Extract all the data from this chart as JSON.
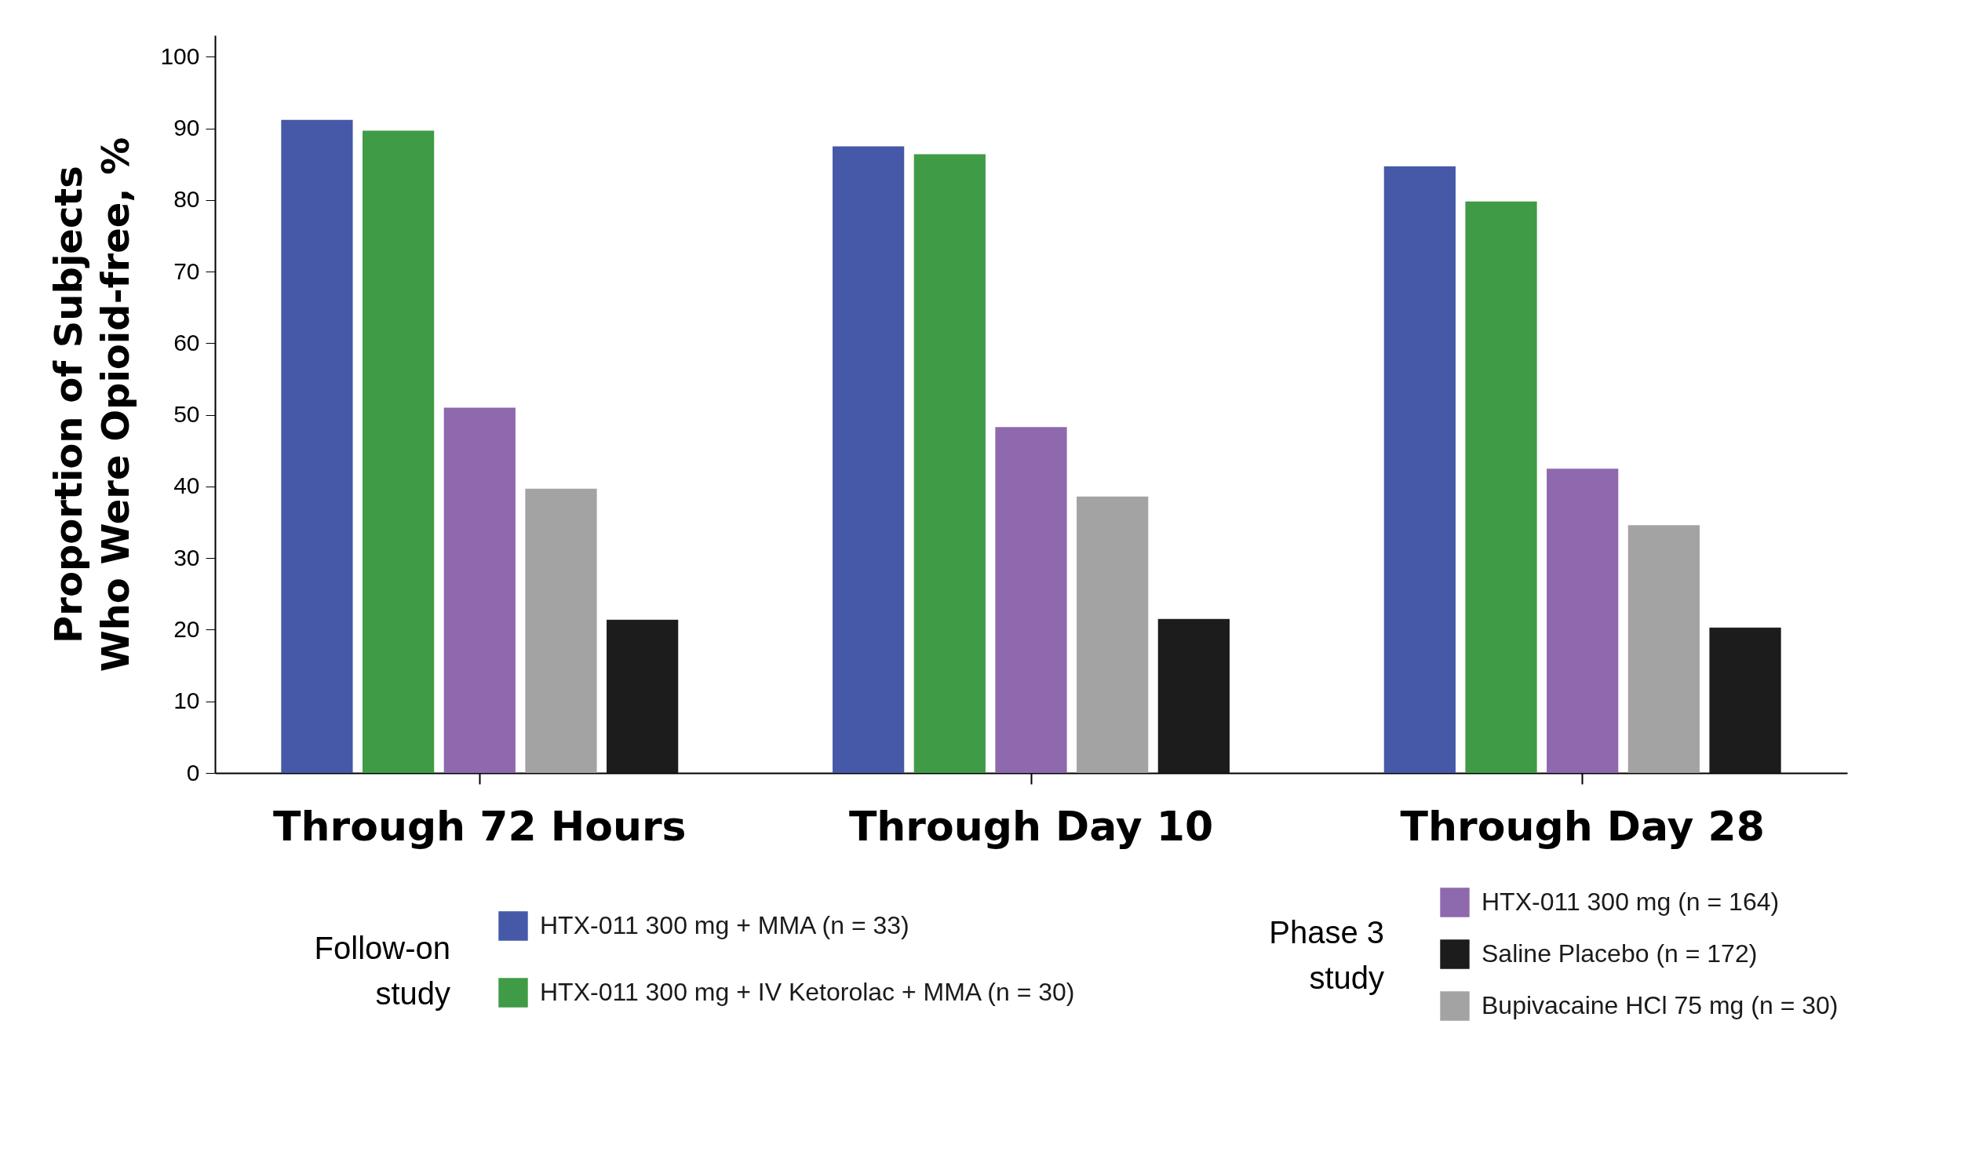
{
  "chart_data": {
    "type": "bar",
    "ylabel": "Proportion of Subjects\nWho Were Opioid-free, %",
    "categories": [
      "Through 72 Hours",
      "Through Day 10",
      "Through Day 28"
    ],
    "series": [
      {
        "name": "HTX-011 300 mg + MMA (n = 33)",
        "color": "#4559a8",
        "values": [
          91.2,
          87.5,
          84.7
        ]
      },
      {
        "name": "HTX-011 300 mg + IV Ketorolac + MMA (n = 30)",
        "color": "#409b47",
        "values": [
          89.7,
          86.4,
          79.8
        ]
      },
      {
        "name": "HTX-011 300 mg (n = 164)",
        "color": "#8e69ae",
        "values": [
          51.0,
          48.3,
          42.5
        ]
      },
      {
        "name": "Bupivacaine HCl 75 mg (n = 30)",
        "color": "#a3a3a3",
        "values": [
          39.7,
          38.6,
          34.6
        ]
      },
      {
        "name": "Saline Placebo (n = 172)",
        "color": "#1c1c1c",
        "values": [
          21.4,
          21.5,
          20.3
        ]
      }
    ],
    "ylim": [
      0,
      103
    ],
    "yticks": [
      0,
      10,
      20,
      30,
      40,
      50,
      60,
      70,
      80,
      90,
      100
    ],
    "grid": false,
    "legend": "bottom",
    "annotations": [
      "Follow-on\nstudy",
      "Phase 3\nstudy"
    ]
  }
}
